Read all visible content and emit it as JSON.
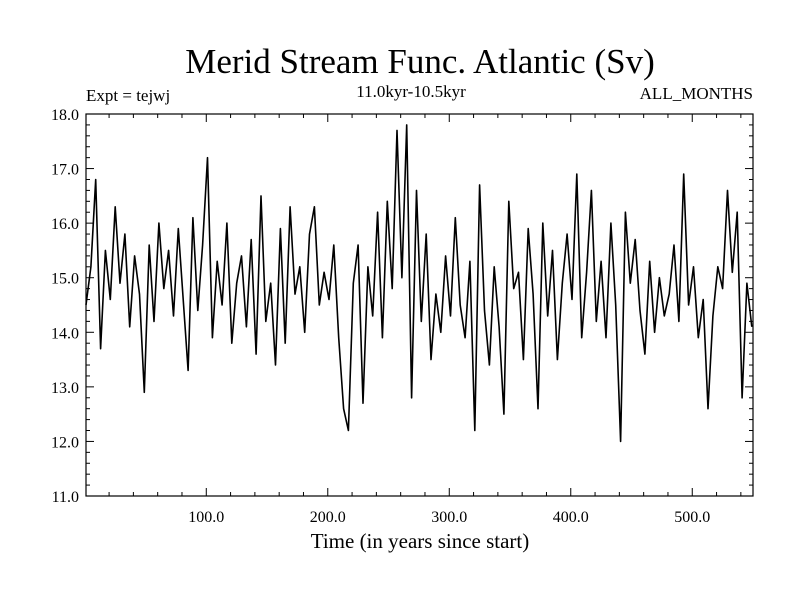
{
  "chart_data": {
    "type": "line",
    "title": "Merid Stream Func. Atlantic (Sv)",
    "subtitle": "11.0kyr-10.5kyr",
    "left_label": "Expt = tejwj",
    "right_label": "ALL_MONTHS",
    "xlabel": "Time (in years since start)",
    "ylabel": "",
    "xlim": [
      1,
      550
    ],
    "ylim": [
      11.0,
      18.0
    ],
    "x_ticks": [
      {
        "value": 100,
        "label": "100.0"
      },
      {
        "value": 200,
        "label": "200.0"
      },
      {
        "value": 300,
        "label": "300.0"
      },
      {
        "value": 400,
        "label": "400.0"
      },
      {
        "value": 500,
        "label": "500.0"
      }
    ],
    "y_ticks": [
      {
        "value": 11,
        "label": "11.0"
      },
      {
        "value": 12,
        "label": "12.0"
      },
      {
        "value": 13,
        "label": "13.0"
      },
      {
        "value": 14,
        "label": "14.0"
      },
      {
        "value": 15,
        "label": "15.0"
      },
      {
        "value": 16,
        "label": "16.0"
      },
      {
        "value": 17,
        "label": "17.0"
      },
      {
        "value": 18,
        "label": "18.0"
      }
    ],
    "grid": false,
    "series": [
      {
        "name": "tejwj",
        "x": [
          1,
          5,
          9,
          13,
          17,
          21,
          25,
          29,
          33,
          37,
          41,
          45,
          49,
          53,
          57,
          61,
          65,
          69,
          73,
          77,
          81,
          85,
          89,
          93,
          97,
          101,
          105,
          109,
          113,
          117,
          121,
          125,
          129,
          133,
          137,
          141,
          145,
          149,
          153,
          157,
          161,
          165,
          169,
          173,
          177,
          181,
          185,
          189,
          193,
          197,
          201,
          205,
          209,
          213,
          217,
          221,
          225,
          229,
          233,
          237,
          241,
          245,
          249,
          253,
          257,
          261,
          265,
          269,
          273,
          277,
          281,
          285,
          289,
          293,
          297,
          301,
          305,
          309,
          313,
          317,
          321,
          325,
          329,
          333,
          337,
          341,
          345,
          349,
          353,
          357,
          361,
          365,
          369,
          373,
          377,
          381,
          385,
          389,
          393,
          397,
          401,
          405,
          409,
          413,
          417,
          421,
          425,
          429,
          433,
          437,
          441,
          445,
          449,
          453,
          457,
          461,
          465,
          469,
          473,
          477,
          481,
          485,
          489,
          493,
          497,
          501,
          505,
          509,
          513,
          517,
          521,
          525,
          529,
          533,
          537,
          541,
          545,
          549
        ],
        "values": [
          14.5,
          15.2,
          16.8,
          13.7,
          15.5,
          14.6,
          16.3,
          14.9,
          15.8,
          14.1,
          15.4,
          14.7,
          12.9,
          15.6,
          14.2,
          16.0,
          14.8,
          15.5,
          14.3,
          15.9,
          14.6,
          13.3,
          16.1,
          14.4,
          15.6,
          17.2,
          13.9,
          15.3,
          14.5,
          16.0,
          13.8,
          14.9,
          15.4,
          14.1,
          15.7,
          13.6,
          16.5,
          14.2,
          14.9,
          13.4,
          15.9,
          13.8,
          16.3,
          14.7,
          15.2,
          14.0,
          15.8,
          16.3,
          14.5,
          15.1,
          14.6,
          15.6,
          13.9,
          12.6,
          12.2,
          14.9,
          15.6,
          12.7,
          15.2,
          14.3,
          16.2,
          13.9,
          16.4,
          14.8,
          17.7,
          15.0,
          17.8,
          12.8,
          16.6,
          14.2,
          15.8,
          13.5,
          14.7,
          14.0,
          15.4,
          14.3,
          16.1,
          14.5,
          13.9,
          15.3,
          12.2,
          16.7,
          14.4,
          13.4,
          15.2,
          14.1,
          12.5,
          16.4,
          14.8,
          15.1,
          13.5,
          15.9,
          14.7,
          12.6,
          16.0,
          14.3,
          15.5,
          13.5,
          14.9,
          15.8,
          14.6,
          16.9,
          13.9,
          15.1,
          16.6,
          14.2,
          15.3,
          13.9,
          16.0,
          14.5,
          12.0,
          16.2,
          14.9,
          15.7,
          14.4,
          13.6,
          15.3,
          14.0,
          15.0,
          14.3,
          14.7,
          15.6,
          14.2,
          16.9,
          14.5,
          15.2,
          13.9,
          14.6,
          12.6,
          14.3,
          15.2,
          14.8,
          16.6,
          15.1,
          16.2,
          12.8,
          14.9,
          14.1
        ]
      }
    ]
  }
}
